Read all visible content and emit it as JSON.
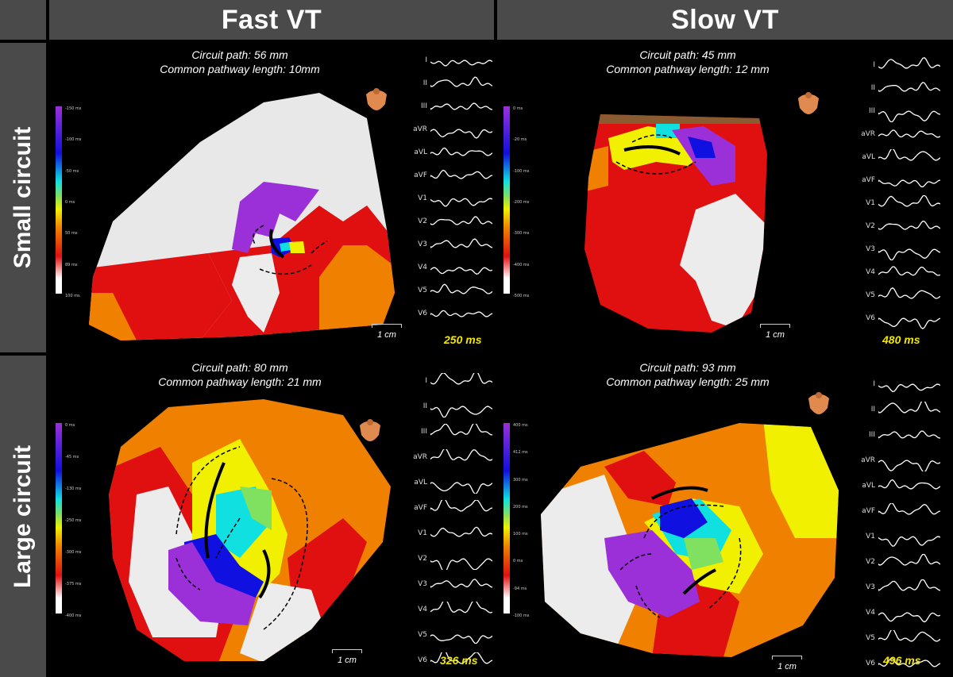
{
  "columns": [
    "Fast VT",
    "Slow VT"
  ],
  "rows": [
    "Small circuit",
    "Large circuit"
  ],
  "lead_names": [
    "I",
    "II",
    "III",
    "aVR",
    "aVL",
    "aVF",
    "V1",
    "V2",
    "V3",
    "V4",
    "V5",
    "V6"
  ],
  "panels": [
    {
      "id": "fast-small",
      "path_label": "Circuit path: 56 mm",
      "common_label": "Common pathway length: 10mm",
      "duration": "250 ms",
      "scale": "1 cm",
      "colorbar_ticks": [
        "-150 ms",
        "-100 ms",
        "-50 ms",
        "0 ms",
        "50 ms",
        "89 ms",
        "100 ms"
      ]
    },
    {
      "id": "slow-small",
      "path_label": "Circuit path: 45 mm",
      "common_label": "Common pathway length: 12 mm",
      "duration": "480 ms",
      "scale": "1 cm",
      "colorbar_ticks": [
        "0 ms",
        "-20 ms",
        "-100 ms",
        "-200 ms",
        "-300 ms",
        "-400 ms",
        "-500 ms"
      ]
    },
    {
      "id": "fast-large",
      "path_label": "Circuit path: 80 mm",
      "common_label": "Common pathway length: 21 mm",
      "duration": "326 ms",
      "scale": "1 cm",
      "colorbar_ticks": [
        "0 ms",
        "-45 ms",
        "-130 ms",
        "-250 ms",
        "-300 ms",
        "-375 ms",
        "-400 ms"
      ]
    },
    {
      "id": "slow-large",
      "path_label": "Circuit path: 93 mm",
      "common_label": "Common pathway length: 25 mm",
      "duration": "496 ms",
      "scale": "1 cm",
      "colorbar_ticks": [
        "400 ms",
        "412 ms",
        "300 ms",
        "200 ms",
        "100 ms",
        "0 ms",
        "-94 ms",
        "-100 ms"
      ]
    }
  ],
  "colors": {
    "purple": "#9b30d9",
    "blue": "#1010e0",
    "cyan": "#10e0e0",
    "green": "#80e060",
    "yellow": "#f0f000",
    "orange": "#f08000",
    "red": "#e01010",
    "white": "#ececec"
  }
}
